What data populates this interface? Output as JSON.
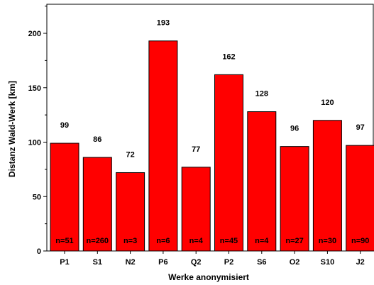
{
  "chart_data": {
    "type": "bar",
    "xlabel": "Werke anonymisiert",
    "ylabel": "Distanz Wald-Werk [km]",
    "ylim": [
      0,
      230
    ],
    "yticks": [
      0,
      50,
      100,
      150,
      200
    ],
    "grid": false,
    "categories": [
      "P1",
      "S1",
      "N2",
      "P6",
      "Q2",
      "P2",
      "S6",
      "O2",
      "S10",
      "J2"
    ],
    "values": [
      99,
      86,
      72,
      193,
      77,
      162,
      128,
      96,
      120,
      97
    ],
    "value_labels": [
      "99",
      "86",
      "72",
      "193",
      "77",
      "162",
      "128",
      "96",
      "120",
      "97"
    ],
    "n_labels": [
      "n=51",
      "n=260",
      "n=3",
      "n=6",
      "n=4",
      "n=45",
      "n=4",
      "n=27",
      "n=30",
      "n=90"
    ],
    "bar_color": "#ff0000",
    "edge_color": "#000000"
  }
}
